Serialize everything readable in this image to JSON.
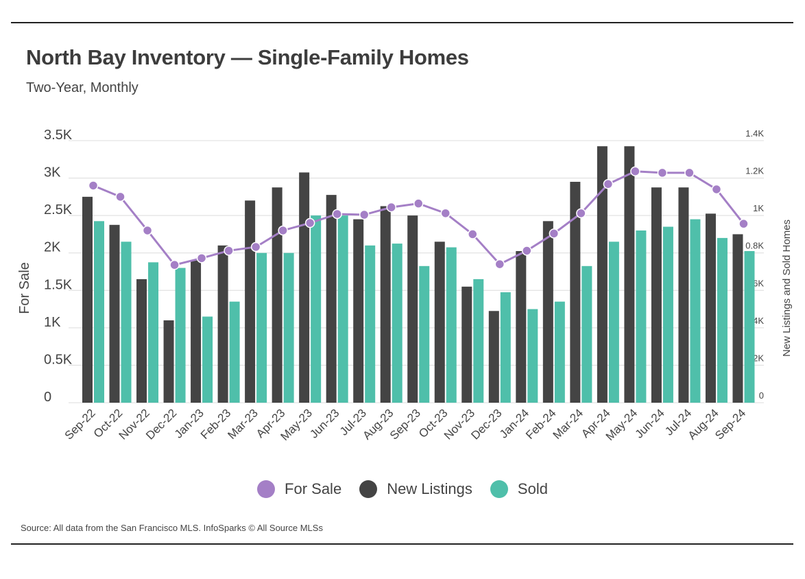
{
  "title": "North Bay Inventory — Single-Family Homes",
  "subtitle": "Two-Year, Monthly",
  "source": "Source:  All data from the San Francisco MLS. InfoSparks © All Source MLSs",
  "colors": {
    "for_sale": "#a47fc6",
    "new_listings": "#444444",
    "sold": "#4fbfaa"
  },
  "chart_data": {
    "type": "bar",
    "categories": [
      "Sep-22",
      "Oct-22",
      "Nov-22",
      "Dec-22",
      "Jan-23",
      "Feb-23",
      "Mar-23",
      "Apr-23",
      "May-23",
      "Jun-23",
      "Jul-23",
      "Aug-23",
      "Sep-23",
      "Oct-23",
      "Nov-23",
      "Dec-23",
      "Jan-24",
      "Feb-24",
      "Mar-24",
      "Apr-24",
      "May-24",
      "Jun-24",
      "Jul-24",
      "Aug-24",
      "Sep-24"
    ],
    "left_axis": {
      "label": "For Sale",
      "ylim": [
        0,
        3500
      ],
      "ticks": [
        0,
        500,
        1000,
        1500,
        2000,
        2500,
        3000,
        3500
      ],
      "tick_labels": [
        "0",
        "0.5K",
        "1K",
        "1.5K",
        "2K",
        "2.5K",
        "3K",
        "3.5K"
      ]
    },
    "right_axis": {
      "label": "New Listings and Sold Homes",
      "ylim": [
        0,
        1400
      ],
      "ticks": [
        0,
        200,
        400,
        600,
        800,
        1000,
        1200,
        1400
      ],
      "tick_labels": [
        "0",
        "0.2K",
        "0.4K",
        "0.6K",
        "0.8K",
        "1K",
        "1.2K",
        "1.4K"
      ]
    },
    "series": [
      {
        "name": "For Sale",
        "type": "line",
        "axis": "left",
        "values": [
          2900,
          2750,
          2300,
          1840,
          1930,
          2030,
          2080,
          2300,
          2400,
          2520,
          2510,
          2610,
          2660,
          2530,
          2250,
          1850,
          2030,
          2260,
          2530,
          2920,
          3090,
          3070,
          3070,
          2850,
          2390
        ]
      },
      {
        "name": "New Listings",
        "type": "bar",
        "axis": "right",
        "values": [
          1100,
          950,
          660,
          440,
          760,
          840,
          1080,
          1150,
          1230,
          1110,
          980,
          1050,
          1000,
          860,
          620,
          490,
          810,
          970,
          1180,
          1370,
          1370,
          1150,
          1150,
          1010,
          900
        ]
      },
      {
        "name": "Sold",
        "type": "bar",
        "axis": "right",
        "values": [
          970,
          860,
          750,
          720,
          460,
          540,
          800,
          800,
          1000,
          1000,
          840,
          850,
          730,
          830,
          660,
          590,
          500,
          540,
          730,
          860,
          920,
          940,
          980,
          880,
          810
        ]
      }
    ],
    "legend": "bottom-center",
    "grid": true
  }
}
